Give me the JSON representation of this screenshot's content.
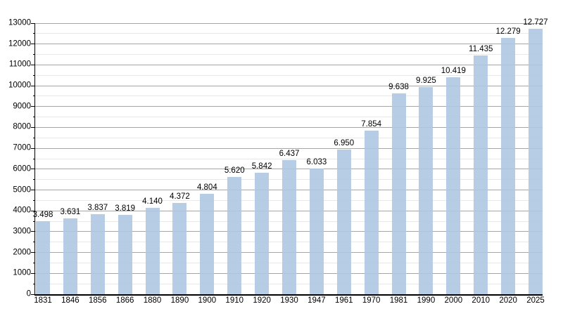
{
  "chart_data": {
    "type": "bar",
    "title": "",
    "xlabel": "",
    "ylabel": "",
    "categories": [
      "1831",
      "1846",
      "1856",
      "1866",
      "1880",
      "1890",
      "1900",
      "1910",
      "1920",
      "1930",
      "1947",
      "1961",
      "1970",
      "1981",
      "1990",
      "2000",
      "2010",
      "2020",
      "2025"
    ],
    "values": [
      3498,
      3631,
      3837,
      3819,
      4140,
      4372,
      4804,
      5620,
      5842,
      6437,
      6033,
      6950,
      7854,
      9638,
      9925,
      10419,
      11435,
      12279,
      12727
    ],
    "value_labels": [
      "3.498",
      "3.631",
      "3.837",
      "3.819",
      "4.140",
      "4.372",
      "4.804",
      "5.620",
      "5.842",
      "6.437",
      "6.033",
      "6.950",
      "7.854",
      "9.638",
      "9.925",
      "10.419",
      "11.435",
      "12.279",
      "12.727"
    ],
    "y_tick_labels": [
      "0",
      "1000",
      "2000",
      "3000",
      "4000",
      "5000",
      "6000",
      "7000",
      "8000",
      "9000",
      "10000",
      "11000",
      "12000",
      "13000"
    ],
    "ylim": [
      0,
      13000
    ],
    "y_major_step": 1000,
    "y_minor_step": 500,
    "grid": "on",
    "legend_position": "none",
    "colors": {
      "bar": "rgba(175, 200, 226, 0.9)",
      "major_grid": "#a6a6a6",
      "minor_grid": "#e8e8e8",
      "axis": "#000000",
      "text": "#000000",
      "background": "#ffffff"
    }
  }
}
